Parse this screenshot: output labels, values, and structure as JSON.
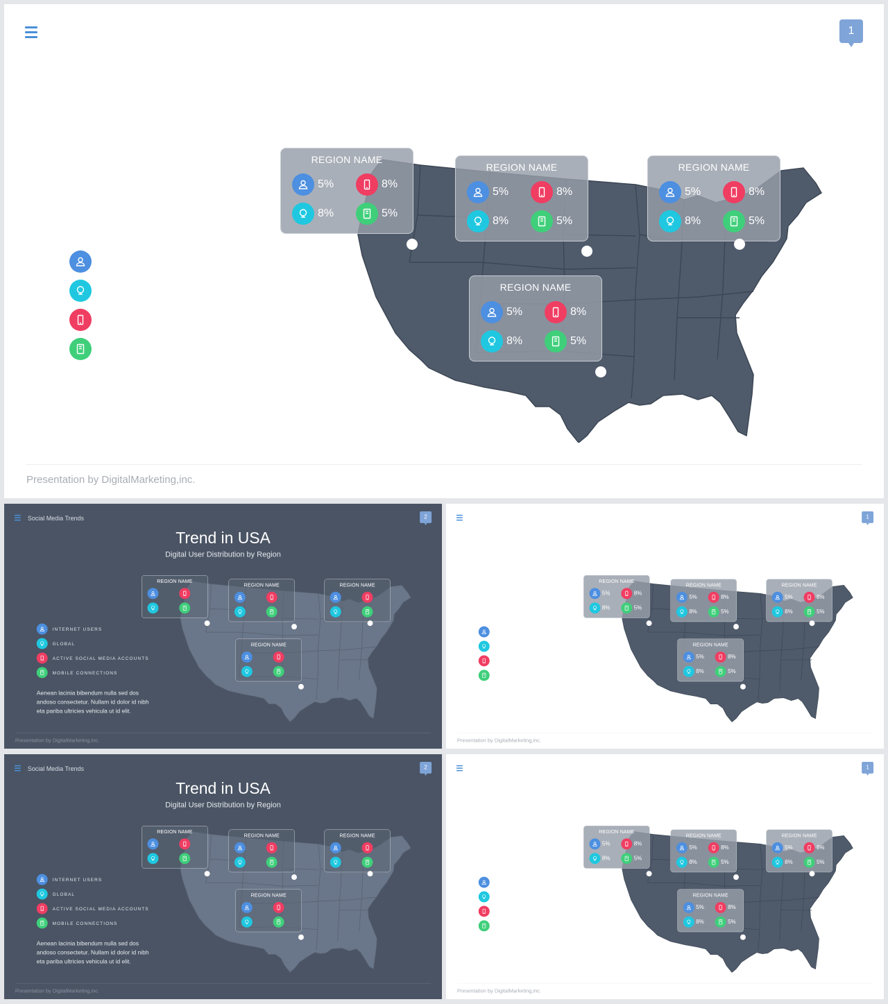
{
  "hero": {
    "page_number": "1",
    "footer": "Presentation  by DigitalMarketing,inc.",
    "legend": [
      {
        "icon": "user-icon",
        "color": "#4d8fe0"
      },
      {
        "icon": "globe-icon",
        "color": "#1fc8e0"
      },
      {
        "icon": "mobile-icon",
        "color": "#f03d62"
      },
      {
        "icon": "tablet-icon",
        "color": "#3fcf7a"
      }
    ]
  },
  "regions": [
    {
      "name": "REGION NAME",
      "internet": "5%",
      "active": "8%",
      "global": "8%",
      "mobile": "5%"
    },
    {
      "name": "REGION NAME",
      "internet": "5%",
      "active": "8%",
      "global": "8%",
      "mobile": "5%"
    },
    {
      "name": "REGION NAME",
      "internet": "5%",
      "active": "8%",
      "global": "8%",
      "mobile": "5%"
    },
    {
      "name": "REGION NAME",
      "internet": "5%",
      "active": "8%",
      "global": "8%",
      "mobile": "5%"
    }
  ],
  "dark_slide": {
    "brand": "Social Media Trends",
    "page_number": "2",
    "title": "Trend in USA",
    "subtitle": "Digital User Distribution by Region",
    "legend": [
      {
        "label": "INTERNET USERS",
        "icon": "user-icon",
        "color": "#4d8fe0"
      },
      {
        "label": "GLOBAL",
        "icon": "globe-icon",
        "color": "#1fc8e0"
      },
      {
        "label": "ACTIVE SOCIAL MEDIA ACCOUNTS",
        "icon": "mobile-icon",
        "color": "#f03d62"
      },
      {
        "label": "MOBILE CONNECTIONS",
        "icon": "tablet-icon",
        "color": "#3fcf7a"
      }
    ],
    "blurb": "Aenean lacinia bibendum nulla sed dos andoso consectetur. Nullam id dolor id nibh eta pariba ultricies vehicula ut id elit.",
    "footer": "Presentation  by DigitalMarketing,inc."
  },
  "thumb_white": {
    "page_number": "1",
    "footer": "Presentation  by DigitalMarketing,inc."
  }
}
